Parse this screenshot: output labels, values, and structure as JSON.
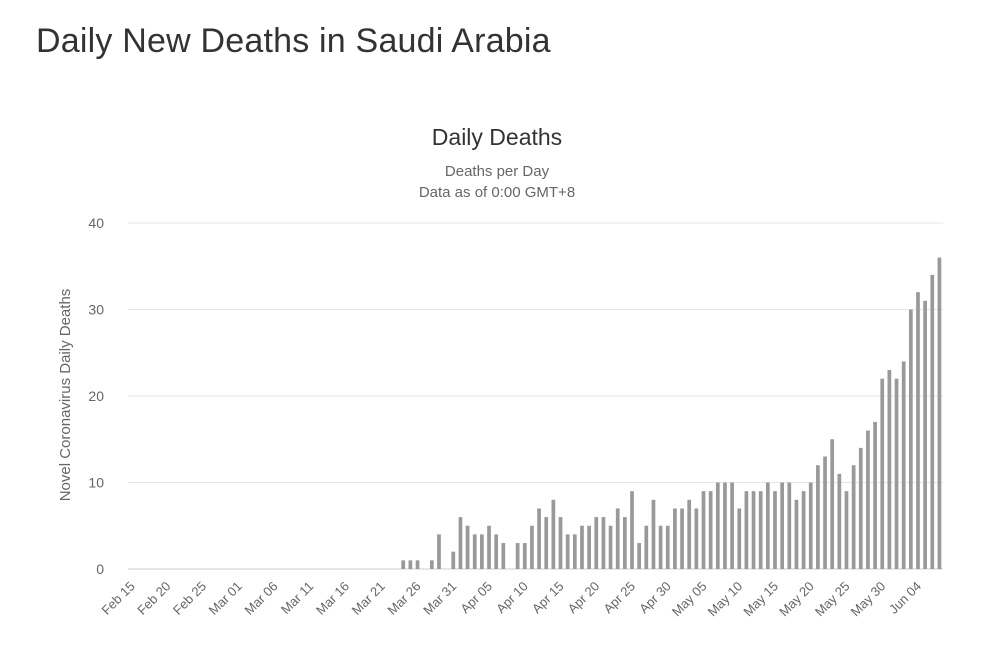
{
  "page": {
    "title": "Daily New Deaths in Saudi Arabia"
  },
  "chart_data": {
    "type": "bar",
    "title": "Daily Deaths",
    "subtitle": "Deaths per Day",
    "subtitle2": "Data as of 0:00 GMT+8",
    "ylabel": "Novel Coronavirus Daily Deaths",
    "xlabel": "",
    "ylim": [
      0,
      40
    ],
    "yticks": [
      0,
      10,
      20,
      30,
      40
    ],
    "grid": true,
    "bar_color": "#999999",
    "x_tick_labels": [
      "Feb 15",
      "Feb 20",
      "Feb 25",
      "Mar 01",
      "Mar 06",
      "Mar 11",
      "Mar 16",
      "Mar 21",
      "Mar 26",
      "Mar 31",
      "Apr 05",
      "Apr 10",
      "Apr 15",
      "Apr 20",
      "Apr 25",
      "Apr 30",
      "May 05",
      "May 10",
      "May 15",
      "May 20",
      "May 25",
      "May 30",
      "Jun 04"
    ],
    "categories": [
      "Feb 15",
      "Feb 16",
      "Feb 17",
      "Feb 18",
      "Feb 19",
      "Feb 20",
      "Feb 21",
      "Feb 22",
      "Feb 23",
      "Feb 24",
      "Feb 25",
      "Feb 26",
      "Feb 27",
      "Feb 28",
      "Feb 29",
      "Mar 01",
      "Mar 02",
      "Mar 03",
      "Mar 04",
      "Mar 05",
      "Mar 06",
      "Mar 07",
      "Mar 08",
      "Mar 09",
      "Mar 10",
      "Mar 11",
      "Mar 12",
      "Mar 13",
      "Mar 14",
      "Mar 15",
      "Mar 16",
      "Mar 17",
      "Mar 18",
      "Mar 19",
      "Mar 20",
      "Mar 21",
      "Mar 22",
      "Mar 23",
      "Mar 24",
      "Mar 25",
      "Mar 26",
      "Mar 27",
      "Mar 28",
      "Mar 29",
      "Mar 30",
      "Mar 31",
      "Apr 01",
      "Apr 02",
      "Apr 03",
      "Apr 04",
      "Apr 05",
      "Apr 06",
      "Apr 07",
      "Apr 08",
      "Apr 09",
      "Apr 10",
      "Apr 11",
      "Apr 12",
      "Apr 13",
      "Apr 14",
      "Apr 15",
      "Apr 16",
      "Apr 17",
      "Apr 18",
      "Apr 19",
      "Apr 20",
      "Apr 21",
      "Apr 22",
      "Apr 23",
      "Apr 24",
      "Apr 25",
      "Apr 26",
      "Apr 27",
      "Apr 28",
      "Apr 29",
      "Apr 30",
      "May 01",
      "May 02",
      "May 03",
      "May 04",
      "May 05",
      "May 06",
      "May 07",
      "May 08",
      "May 09",
      "May 10",
      "May 11",
      "May 12",
      "May 13",
      "May 14",
      "May 15",
      "May 16",
      "May 17",
      "May 18",
      "May 19",
      "May 20",
      "May 21",
      "May 22",
      "May 23",
      "May 24",
      "May 25",
      "May 26",
      "May 27",
      "May 28",
      "May 29",
      "May 30",
      "May 31",
      "Jun 01",
      "Jun 02",
      "Jun 03",
      "Jun 04",
      "Jun 05",
      "Jun 06",
      "Jun 07"
    ],
    "values": [
      0,
      0,
      0,
      0,
      0,
      0,
      0,
      0,
      0,
      0,
      0,
      0,
      0,
      0,
      0,
      0,
      0,
      0,
      0,
      0,
      0,
      0,
      0,
      0,
      0,
      0,
      0,
      0,
      0,
      0,
      0,
      0,
      0,
      0,
      0,
      0,
      0,
      0,
      1,
      1,
      1,
      0,
      1,
      4,
      0,
      2,
      6,
      5,
      4,
      4,
      5,
      4,
      3,
      0,
      3,
      3,
      5,
      7,
      6,
      8,
      6,
      4,
      4,
      5,
      5,
      6,
      6,
      5,
      7,
      6,
      9,
      3,
      5,
      8,
      5,
      5,
      7,
      7,
      8,
      7,
      9,
      9,
      10,
      10,
      10,
      7,
      9,
      9,
      9,
      10,
      9,
      10,
      10,
      8,
      9,
      10,
      12,
      13,
      15,
      11,
      9,
      12,
      14,
      16,
      17,
      22,
      23,
      22,
      24,
      30,
      32,
      31,
      34,
      36
    ]
  }
}
